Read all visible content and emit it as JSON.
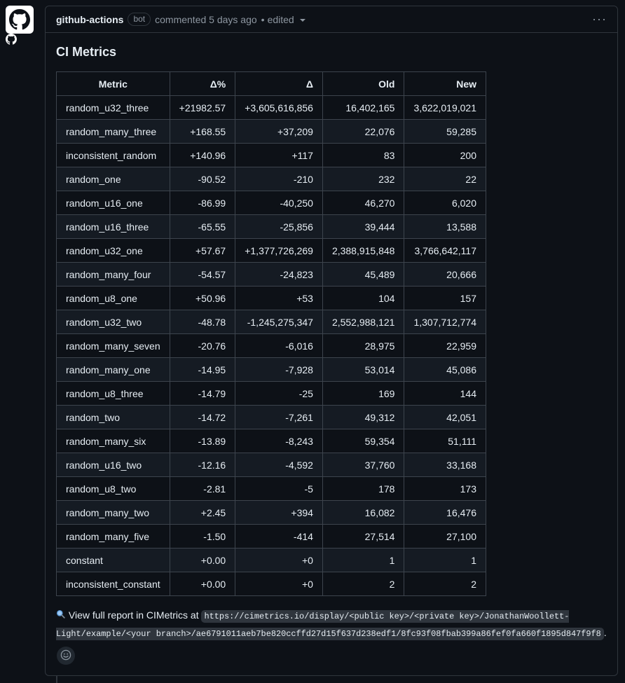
{
  "comment": {
    "author": "github-actions",
    "badge": "bot",
    "meta": "commented 5 days ago",
    "separator": "•",
    "edited": "edited",
    "menu_glyph": "···"
  },
  "body": {
    "title": "CI Metrics",
    "table": {
      "headers": [
        "Metric",
        "Δ%",
        "Δ",
        "Old",
        "New"
      ],
      "rows": [
        [
          "random_u32_three",
          "+21982.57",
          "+3,605,616,856",
          "16,402,165",
          "3,622,019,021"
        ],
        [
          "random_many_three",
          "+168.55",
          "+37,209",
          "22,076",
          "59,285"
        ],
        [
          "inconsistent_random",
          "+140.96",
          "+117",
          "83",
          "200"
        ],
        [
          "random_one",
          "-90.52",
          "-210",
          "232",
          "22"
        ],
        [
          "random_u16_one",
          "-86.99",
          "-40,250",
          "46,270",
          "6,020"
        ],
        [
          "random_u16_three",
          "-65.55",
          "-25,856",
          "39,444",
          "13,588"
        ],
        [
          "random_u32_one",
          "+57.67",
          "+1,377,726,269",
          "2,388,915,848",
          "3,766,642,117"
        ],
        [
          "random_many_four",
          "-54.57",
          "-24,823",
          "45,489",
          "20,666"
        ],
        [
          "random_u8_one",
          "+50.96",
          "+53",
          "104",
          "157"
        ],
        [
          "random_u32_two",
          "-48.78",
          "-1,245,275,347",
          "2,552,988,121",
          "1,307,712,774"
        ],
        [
          "random_many_seven",
          "-20.76",
          "-6,016",
          "28,975",
          "22,959"
        ],
        [
          "random_many_one",
          "-14.95",
          "-7,928",
          "53,014",
          "45,086"
        ],
        [
          "random_u8_three",
          "-14.79",
          "-25",
          "169",
          "144"
        ],
        [
          "random_two",
          "-14.72",
          "-7,261",
          "49,312",
          "42,051"
        ],
        [
          "random_many_six",
          "-13.89",
          "-8,243",
          "59,354",
          "51,111"
        ],
        [
          "random_u16_two",
          "-12.16",
          "-4,592",
          "37,760",
          "33,168"
        ],
        [
          "random_u8_two",
          "-2.81",
          "-5",
          "178",
          "173"
        ],
        [
          "random_many_two",
          "+2.45",
          "+394",
          "16,082",
          "16,476"
        ],
        [
          "random_many_five",
          "-1.50",
          "-414",
          "27,514",
          "27,100"
        ],
        [
          "constant",
          "+0.00",
          "+0",
          "1",
          "1"
        ],
        [
          "inconsistent_constant",
          "+0.00",
          "+0",
          "2",
          "2"
        ]
      ]
    },
    "report": {
      "text": "View full report in CIMetrics at",
      "url": "https://cimetrics.io/display/<public key>/<private key>/JonathanWoollett-Light/example/<your branch>/ae6791011aeb7be820ccffd27d15f637d238edf1/8fc93f08fbab399a86fef0fa660f1895d847f9f8",
      "trailing": "."
    }
  },
  "icons": {
    "avatar": "github-actions-logo",
    "report": "magnifying-glass-icon",
    "reaction": "smiley-icon"
  },
  "colors": {
    "background": "#0d1117",
    "border": "#30363d",
    "muted_text": "#8d96a0",
    "text": "#e6edf3"
  }
}
